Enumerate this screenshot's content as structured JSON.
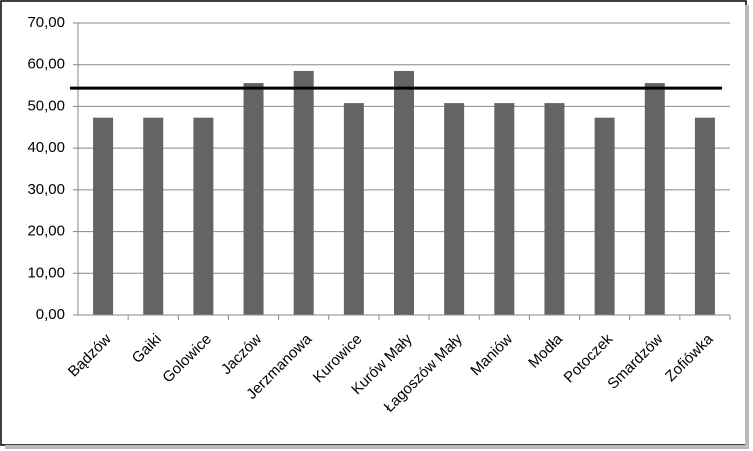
{
  "chart_data": {
    "type": "bar",
    "categories": [
      "Bądzów",
      "Gaiki",
      "Golowice",
      "Jaczów",
      "Jerzmanowa",
      "Kurowice",
      "Kurów Mały",
      "Łagoszów Mały",
      "Maniów",
      "Modła",
      "Potoczek",
      "Smardzów",
      "Zofiówka"
    ],
    "values": [
      47.3,
      47.3,
      47.3,
      55.6,
      58.5,
      50.8,
      58.5,
      50.8,
      50.8,
      50.8,
      47.3,
      55.6,
      47.3
    ],
    "color": "#646464",
    "reference_line": 54.4,
    "reference_color": "#000000",
    "ylim": [
      0,
      70
    ],
    "yticks": [
      {
        "value": 0,
        "label": "0,00"
      },
      {
        "value": 10,
        "label": "10,00"
      },
      {
        "value": 20,
        "label": "20,00"
      },
      {
        "value": 30,
        "label": "30,00"
      },
      {
        "value": 40,
        "label": "40,00"
      },
      {
        "value": 50,
        "label": "50,00"
      },
      {
        "value": 60,
        "label": "60,00"
      },
      {
        "value": 70,
        "label": "70,00"
      }
    ],
    "grid": true
  }
}
